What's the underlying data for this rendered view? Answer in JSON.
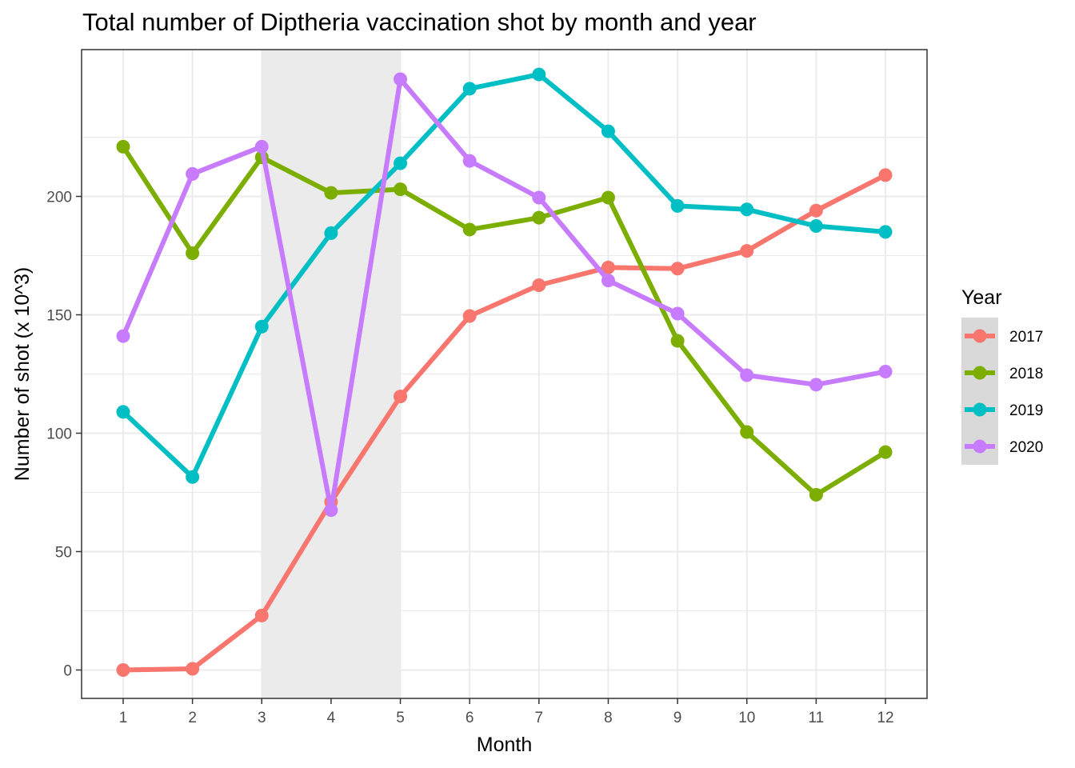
{
  "chart_data": {
    "type": "line",
    "title": "Total number of Diptheria vaccination shot by month and year",
    "xlabel": "Month",
    "ylabel": "Number of shot (x 10^3)",
    "x": [
      1,
      2,
      3,
      4,
      5,
      6,
      7,
      8,
      9,
      10,
      11,
      12
    ],
    "x_ticks": [
      "1",
      "2",
      "3",
      "4",
      "5",
      "6",
      "7",
      "8",
      "9",
      "10",
      "11",
      "12"
    ],
    "y_ticks": [
      0,
      50,
      100,
      150,
      200
    ],
    "xlim": [
      0.4,
      12.6
    ],
    "ylim": [
      -12,
      262
    ],
    "grid": true,
    "shaded_region": {
      "x_from": 3,
      "x_to": 5,
      "color": "#ebebeb"
    },
    "legend": {
      "title": "Year",
      "placement": "right"
    },
    "series": [
      {
        "name": "2017",
        "color": "#F8766D",
        "values": [
          0,
          0.5,
          23,
          71,
          115.5,
          149.5,
          162.5,
          170,
          169.5,
          177,
          194,
          209
        ]
      },
      {
        "name": "2018",
        "color": "#7CAE00",
        "values": [
          221,
          176,
          216.5,
          201.5,
          203,
          186,
          191,
          199.5,
          139,
          100.5,
          74,
          92
        ]
      },
      {
        "name": "2019",
        "color": "#00BFC4",
        "values": [
          109,
          81.5,
          145,
          184.5,
          214,
          245.5,
          251.5,
          227.5,
          196,
          194.5,
          187.5,
          185
        ]
      },
      {
        "name": "2020",
        "color": "#C77CFF",
        "values": [
          141,
          209.5,
          221,
          67.5,
          249.5,
          215,
          199.5,
          164.5,
          150.5,
          124.5,
          120.5,
          126
        ]
      }
    ]
  }
}
